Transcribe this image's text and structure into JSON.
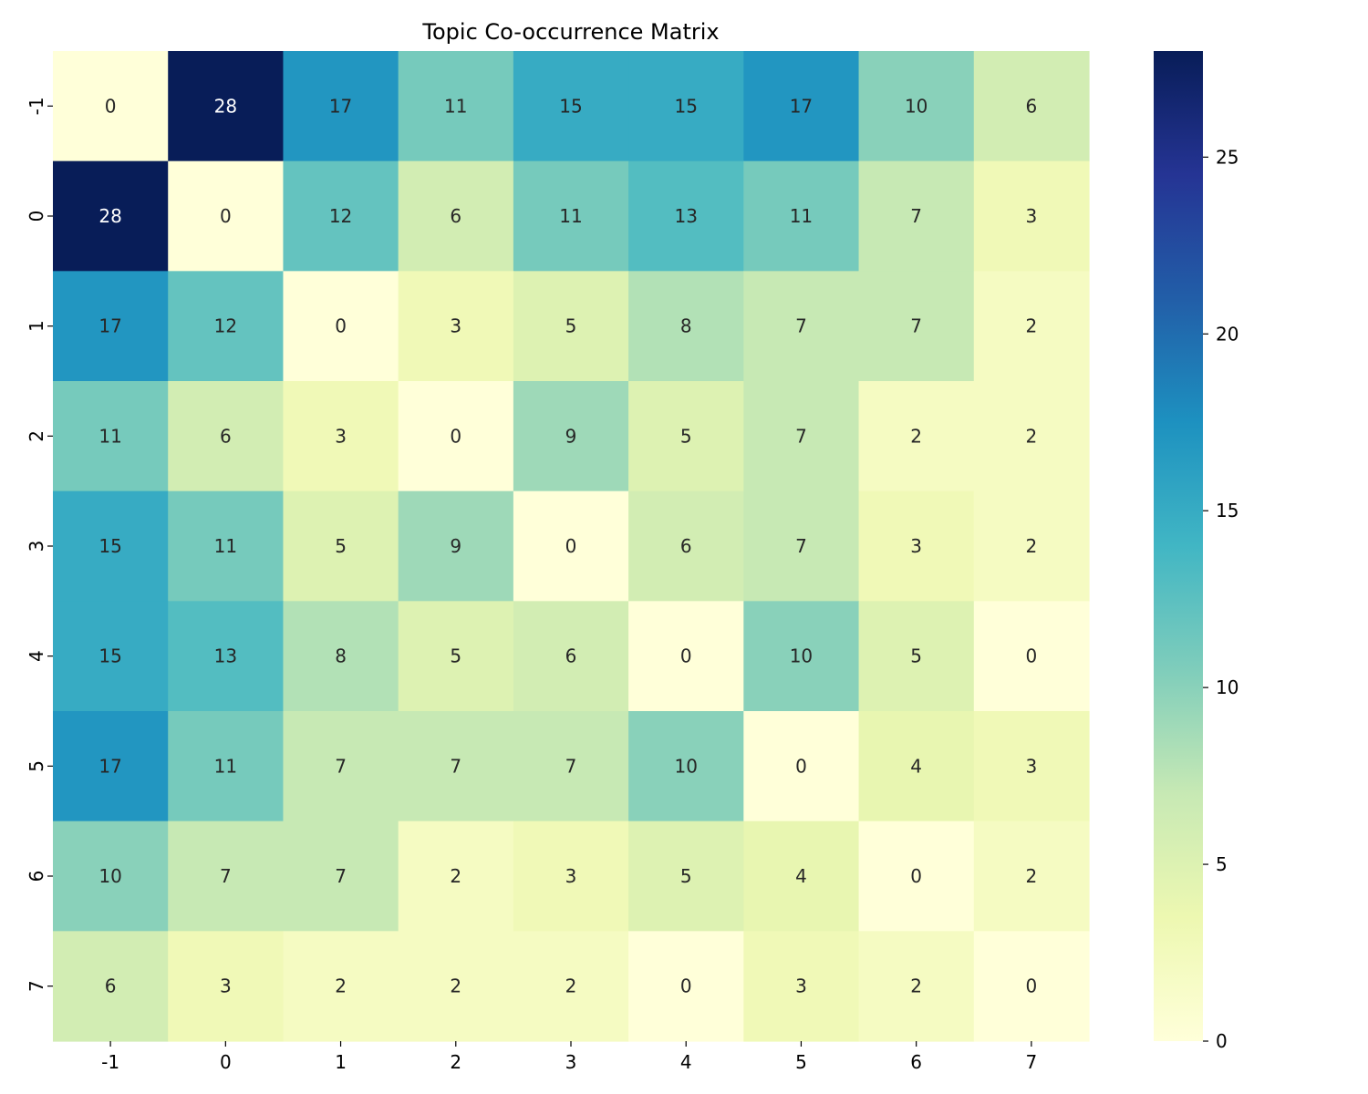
{
  "chart_data": {
    "type": "heatmap",
    "title": "Topic Co-occurrence Matrix",
    "xlabel": "",
    "ylabel": "",
    "x_categories": [
      "-1",
      "0",
      "1",
      "2",
      "3",
      "4",
      "5",
      "6",
      "7"
    ],
    "y_categories": [
      "-1",
      "0",
      "1",
      "2",
      "3",
      "4",
      "5",
      "6",
      "7"
    ],
    "values": [
      [
        0,
        28,
        17,
        11,
        15,
        15,
        17,
        10,
        6
      ],
      [
        28,
        0,
        12,
        6,
        11,
        13,
        11,
        7,
        3
      ],
      [
        17,
        12,
        0,
        3,
        5,
        8,
        7,
        7,
        2
      ],
      [
        11,
        6,
        3,
        0,
        9,
        5,
        7,
        2,
        2
      ],
      [
        15,
        11,
        5,
        9,
        0,
        6,
        7,
        3,
        2
      ],
      [
        15,
        13,
        8,
        5,
        6,
        0,
        10,
        5,
        0
      ],
      [
        17,
        11,
        7,
        7,
        7,
        10,
        0,
        4,
        3
      ],
      [
        10,
        7,
        7,
        2,
        3,
        5,
        4,
        0,
        2
      ],
      [
        6,
        3,
        2,
        2,
        2,
        0,
        3,
        2,
        0
      ]
    ],
    "colormap": "YlGnBu",
    "vmin": 0,
    "vmax": 28,
    "colorbar_ticks": [
      0,
      5,
      10,
      15,
      20,
      25
    ],
    "annotated": true
  }
}
